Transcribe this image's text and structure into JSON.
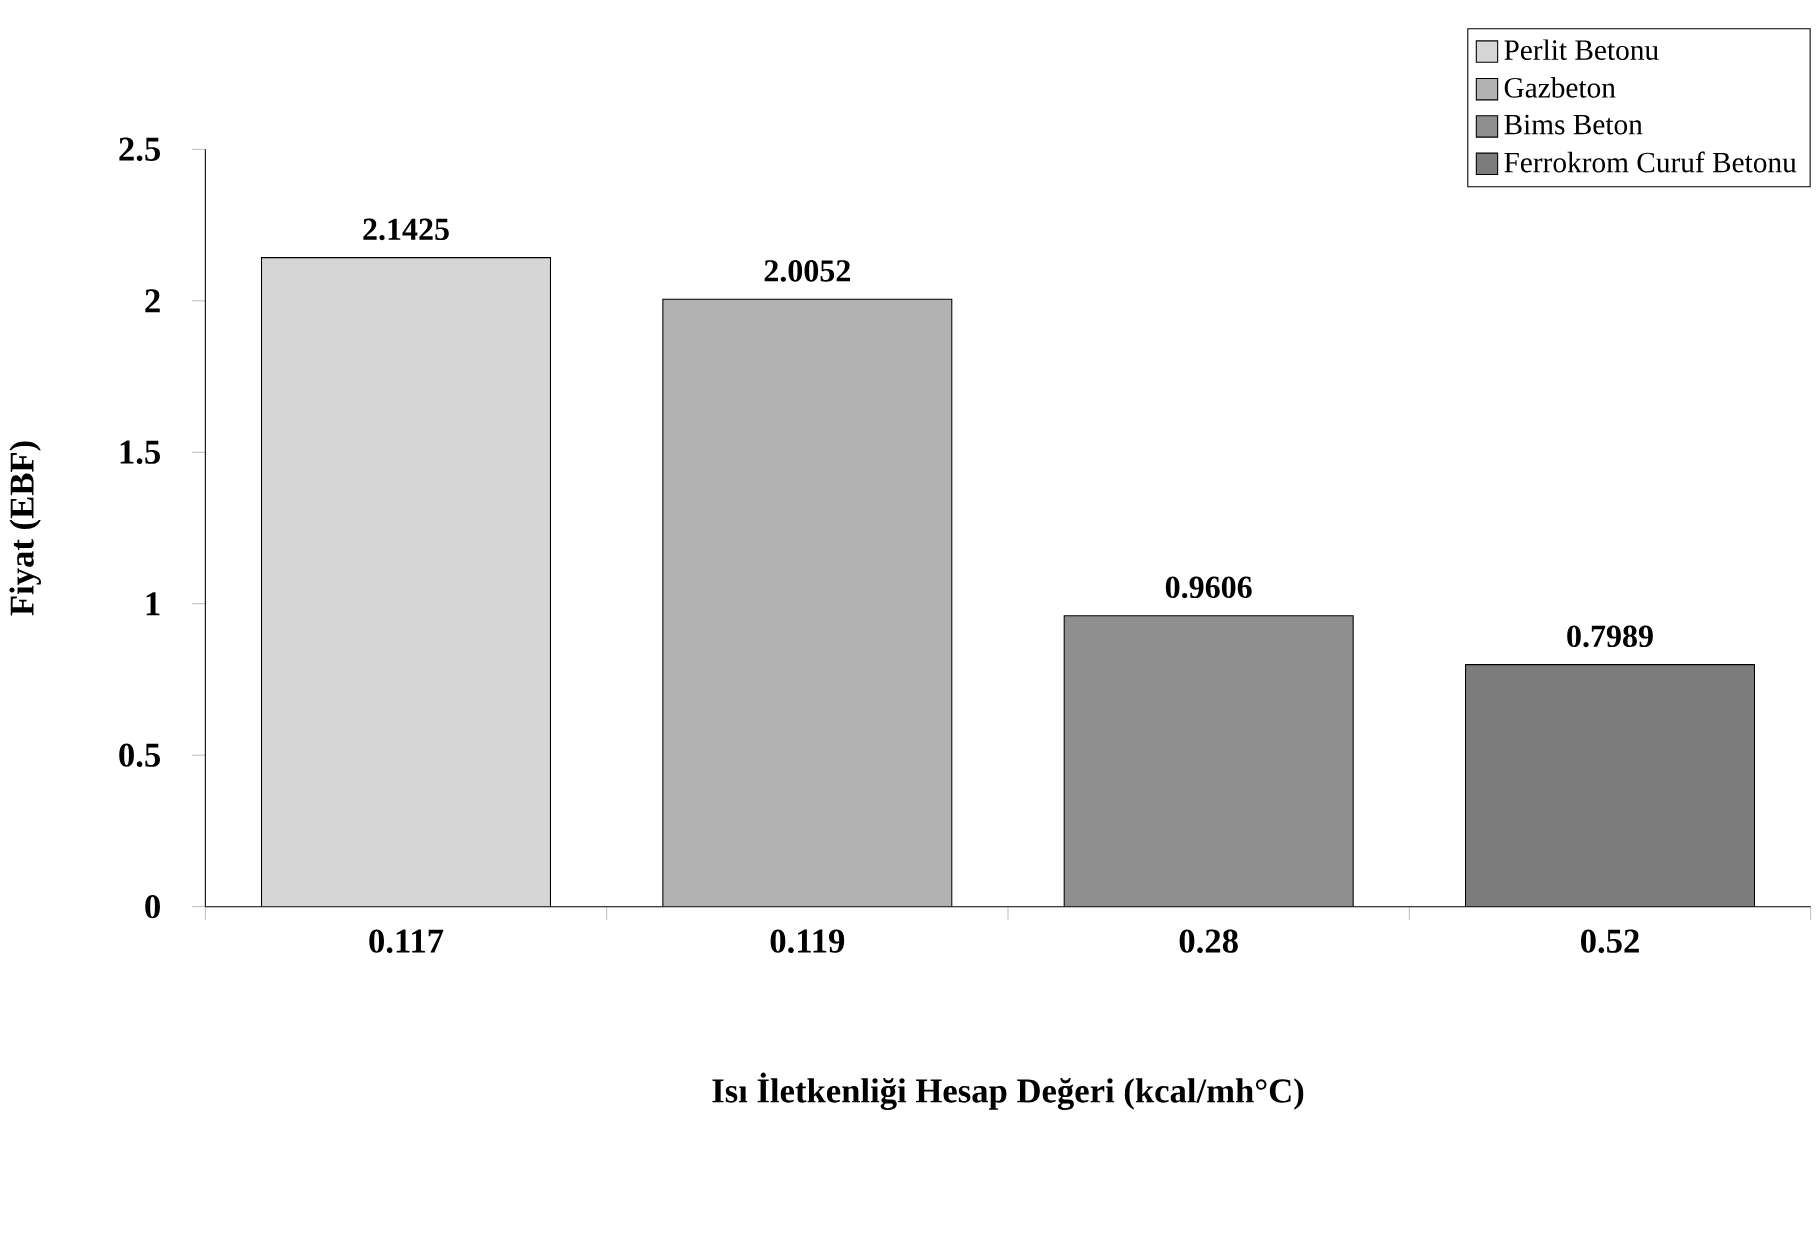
{
  "chart_data": {
    "type": "bar",
    "xlabel": "Isı İletkenliği Hesap Değeri (kcal/mh°C)",
    "ylabel": "Fiyat (EBF)",
    "categories": [
      "0.117",
      "0.119",
      "0.28",
      "0.52"
    ],
    "series": [
      {
        "name": "Perlit Betonu",
        "color": "#d6d6d6",
        "values": [
          2.1425,
          null,
          null,
          null
        ]
      },
      {
        "name": "Gazbeton",
        "color": "#b2b2b2",
        "values": [
          null,
          2.0052,
          null,
          null
        ]
      },
      {
        "name": "Bims Beton",
        "color": "#8f8f8f",
        "values": [
          null,
          null,
          0.9606,
          null
        ]
      },
      {
        "name": "Ferrokrom Curuf Betonu",
        "color": "#7c7c7c",
        "values": [
          null,
          null,
          null,
          0.7989
        ]
      }
    ],
    "ylim": [
      0,
      2.5
    ],
    "yticks": [
      0,
      0.5,
      1,
      1.5,
      2,
      2.5
    ],
    "data_labels": true,
    "legend": "top right",
    "grid": false
  }
}
